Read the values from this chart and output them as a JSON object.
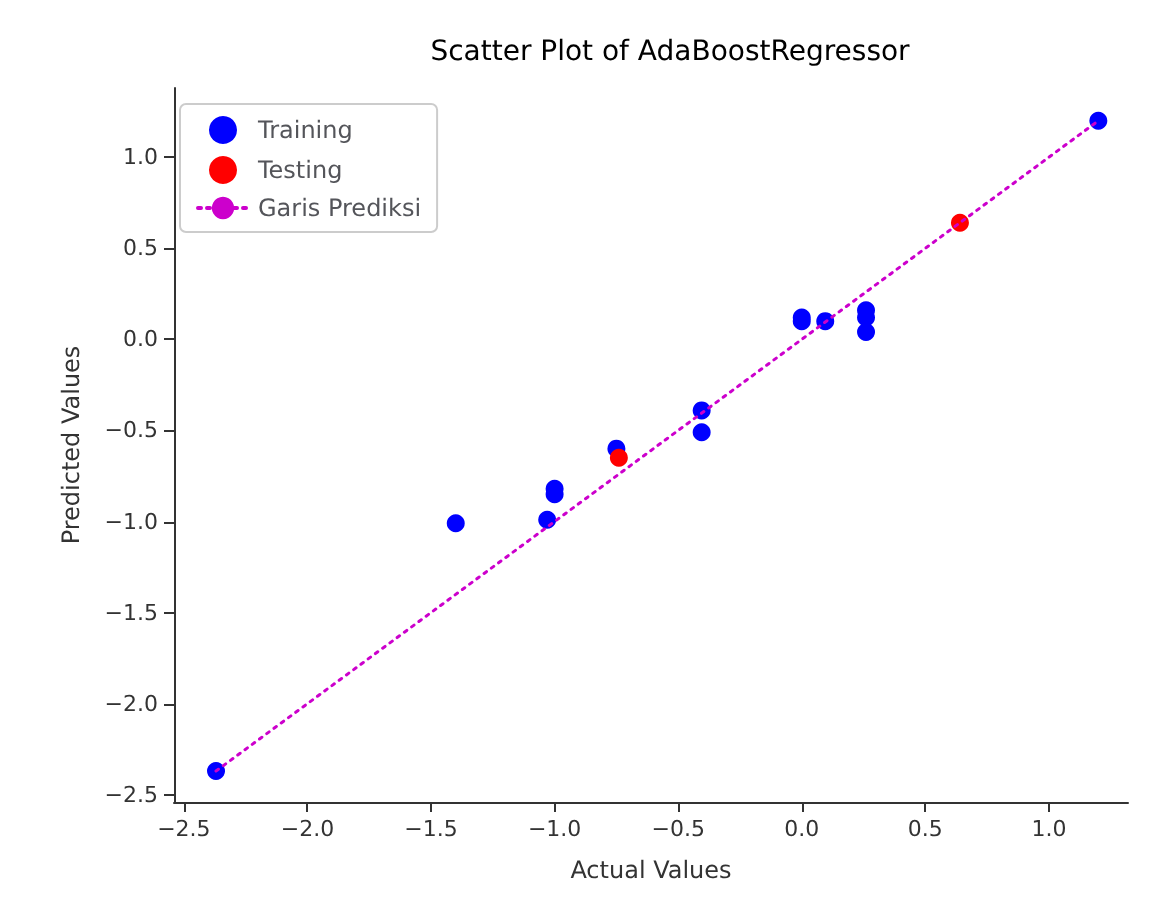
{
  "chart_data": {
    "type": "scatter",
    "title": "Scatter Plot of AdaBoostRegressor",
    "xlabel": "Actual Values",
    "ylabel": "Predicted Values",
    "xlim": [
      -2.54,
      1.32
    ],
    "ylim": [
      -2.54,
      1.38
    ],
    "xticks": [
      -2.5,
      {
        "value": -2,
        "label": "−2.0"
      },
      -1.5,
      {
        "value": -1,
        "label": "−1.0"
      },
      -0.5,
      {
        "value": 0,
        "label": "0.0"
      },
      0.5,
      {
        "value": 1,
        "label": "1.0"
      }
    ],
    "yticks": [
      -2.5,
      {
        "value": -2,
        "label": "−2.0"
      },
      -1.5,
      {
        "value": -1,
        "label": "−1.0"
      },
      -0.5,
      {
        "value": 0,
        "label": "0.0"
      },
      0.5,
      {
        "value": 1,
        "label": "1.0"
      }
    ],
    "grid": false,
    "legend": "top left",
    "marker": "circle",
    "series": [
      {
        "name": "Training",
        "color": "#0000ff",
        "x": [
          -2.37,
          -1.4,
          -1.03,
          -1.0,
          -1.0,
          -0.75,
          -0.405,
          -0.405,
          0.0,
          0.0,
          0.095,
          0.26,
          0.26,
          0.26,
          1.2
        ],
        "values": [
          -2.37,
          -1.01,
          -0.99,
          -0.82,
          -0.85,
          -0.6,
          -0.39,
          -0.51,
          0.12,
          0.1,
          0.1,
          0.16,
          0.12,
          0.04,
          1.2
        ]
      },
      {
        "name": "Testing",
        "color": "#ff0000",
        "x": [
          -0.74,
          0.64
        ],
        "values": [
          -0.65,
          0.64
        ]
      },
      {
        "name": "Garis Prediksi",
        "type": "line",
        "color": "#cc00cc",
        "line_style": "dotted",
        "marker": "none",
        "x": [
          -2.37,
          1.2
        ],
        "values": [
          -2.37,
          1.2
        ]
      }
    ]
  }
}
